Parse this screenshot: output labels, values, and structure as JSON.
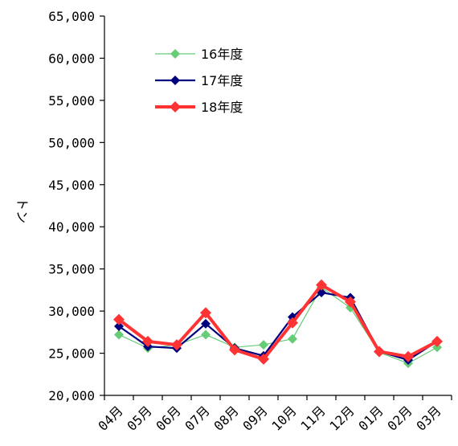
{
  "chart_data": {
    "type": "line",
    "categories": [
      "04月",
      "05月",
      "06月",
      "07月",
      "08月",
      "09月",
      "10月",
      "11月",
      "12月",
      "01月",
      "02月",
      "03月"
    ],
    "ylabel": "トン",
    "ylim": [
      20000,
      65000
    ],
    "yticks": [
      "20,000",
      "25,000",
      "30,000",
      "35,000",
      "40,000",
      "45,000",
      "50,000",
      "55,000",
      "60,000",
      "65,000"
    ],
    "legend_position": "top-left",
    "grid": false,
    "series": [
      {
        "name": "16年度",
        "color": "#66cc77",
        "marker": "diamond",
        "values": [
          27200,
          25600,
          26000,
          27200,
          25700,
          26000,
          26700,
          32800,
          30400,
          25100,
          23800,
          25700
        ]
      },
      {
        "name": "17年度",
        "color": "#00007f",
        "marker": "diamond",
        "values": [
          28200,
          25800,
          25600,
          28500,
          25600,
          24700,
          29300,
          32200,
          31600,
          25200,
          24200,
          26400
        ]
      },
      {
        "name": "18年度",
        "color": "#ff3333",
        "marker": "diamond",
        "values": [
          29000,
          26400,
          26000,
          29800,
          25400,
          24300,
          28600,
          33100,
          31100,
          25200,
          24600,
          26400
        ]
      }
    ]
  }
}
